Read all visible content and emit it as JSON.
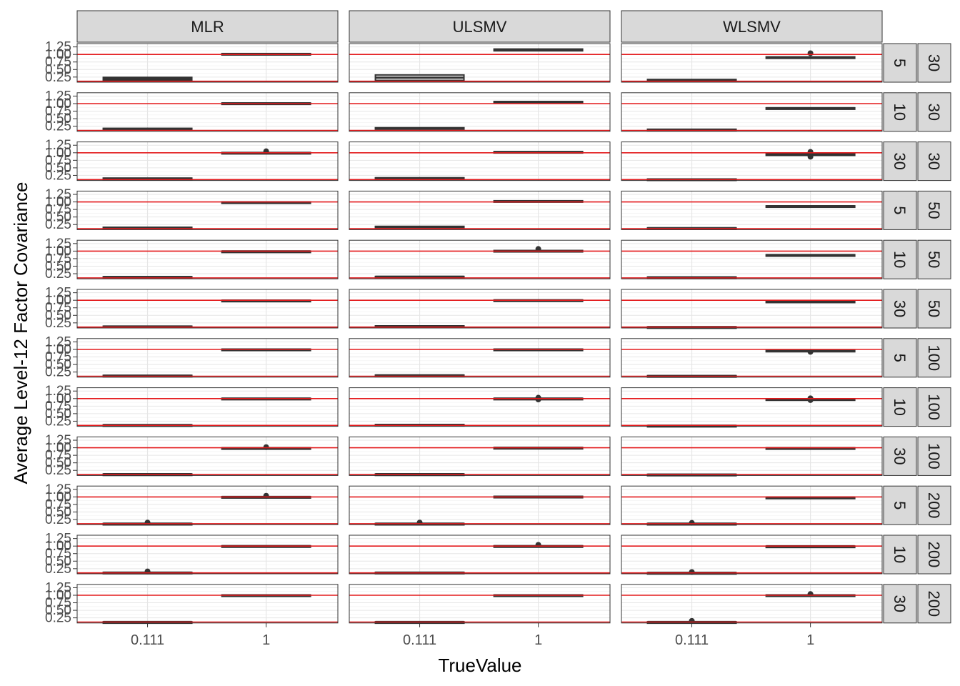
{
  "chart_data": {
    "type": "box",
    "xlabel": "TrueValue",
    "ylabel": "Average Level-12 Factor Covariance",
    "columns": [
      "MLR",
      "ULSMV",
      "WLSMV"
    ],
    "rows": [
      {
        "r1": "5",
        "r2": "30"
      },
      {
        "r1": "10",
        "r2": "30"
      },
      {
        "r1": "30",
        "r2": "30"
      },
      {
        "r1": "5",
        "r2": "50"
      },
      {
        "r1": "10",
        "r2": "50"
      },
      {
        "r1": "30",
        "r2": "50"
      },
      {
        "r1": "5",
        "r2": "100"
      },
      {
        "r1": "10",
        "r2": "100"
      },
      {
        "r1": "30",
        "r2": "100"
      },
      {
        "r1": "5",
        "r2": "200"
      },
      {
        "r1": "10",
        "r2": "200"
      },
      {
        "r1": "30",
        "r2": "200"
      }
    ],
    "categories": [
      "0.111",
      "1"
    ],
    "y_ticks": [
      "0.25",
      "0.50",
      "0.75",
      "1.00",
      "1.25"
    ],
    "y_tick_values": [
      0.25,
      0.5,
      0.75,
      1.0,
      1.25
    ],
    "ylim": [
      0.08,
      1.36
    ],
    "ref_lines": [
      0.111,
      1
    ],
    "ref_line_color": "#e31a1c",
    "box_color": "#333333",
    "strip_fill": "#d9d9d9",
    "panels": [
      [
        {
          "boxes": [
            {
              "q1": 0.14,
              "q3": 0.24,
              "lo": 0.13,
              "hi": 0.26,
              "out": []
            },
            {
              "q1": 1.0,
              "q3": 1.03,
              "lo": 0.99,
              "hi": 1.05,
              "out": []
            }
          ]
        },
        {
          "boxes": [
            {
              "q1": 0.14,
              "q3": 0.32,
              "lo": 0.12,
              "hi": 0.34,
              "out": []
            },
            {
              "q1": 1.12,
              "q3": 1.18,
              "lo": 1.1,
              "hi": 1.2,
              "out": []
            }
          ]
        },
        {
          "boxes": [
            {
              "q1": 0.13,
              "q3": 0.17,
              "lo": 0.12,
              "hi": 0.18,
              "out": []
            },
            {
              "q1": 0.87,
              "q3": 0.92,
              "lo": 0.86,
              "hi": 0.93,
              "out": [
                1.04
              ]
            }
          ]
        }
      ],
      [
        {
          "boxes": [
            {
              "q1": 0.14,
              "q3": 0.18,
              "lo": 0.13,
              "hi": 0.2,
              "out": []
            },
            {
              "q1": 1.0,
              "q3": 1.02,
              "lo": 0.99,
              "hi": 1.03,
              "out": []
            }
          ]
        },
        {
          "boxes": [
            {
              "q1": 0.15,
              "q3": 0.2,
              "lo": 0.13,
              "hi": 0.22,
              "out": []
            },
            {
              "q1": 1.04,
              "q3": 1.07,
              "lo": 1.03,
              "hi": 1.08,
              "out": []
            }
          ]
        },
        {
          "boxes": [
            {
              "q1": 0.12,
              "q3": 0.15,
              "lo": 0.11,
              "hi": 0.16,
              "out": []
            },
            {
              "q1": 0.84,
              "q3": 0.86,
              "lo": 0.83,
              "hi": 0.87,
              "out": []
            }
          ]
        }
      ],
      [
        {
          "boxes": [
            {
              "q1": 0.13,
              "q3": 0.16,
              "lo": 0.12,
              "hi": 0.17,
              "out": []
            },
            {
              "q1": 0.98,
              "q3": 1.01,
              "lo": 0.97,
              "hi": 1.02,
              "out": [
                1.05
              ]
            }
          ]
        },
        {
          "boxes": [
            {
              "q1": 0.14,
              "q3": 0.17,
              "lo": 0.13,
              "hi": 0.18,
              "out": []
            },
            {
              "q1": 1.0,
              "q3": 1.04,
              "lo": 0.99,
              "hi": 1.06,
              "out": []
            }
          ]
        },
        {
          "boxes": [
            {
              "q1": 0.1,
              "q3": 0.13,
              "lo": 0.09,
              "hi": 0.14,
              "out": []
            },
            {
              "q1": 0.92,
              "q3": 0.96,
              "lo": 0.9,
              "hi": 0.97,
              "out": [
                0.87,
                1.03
              ]
            }
          ]
        }
      ],
      [
        {
          "boxes": [
            {
              "q1": 0.13,
              "q3": 0.16,
              "lo": 0.12,
              "hi": 0.17,
              "out": []
            },
            {
              "q1": 0.98,
              "q3": 1.0,
              "lo": 0.97,
              "hi": 1.01,
              "out": []
            }
          ]
        },
        {
          "boxes": [
            {
              "q1": 0.14,
              "q3": 0.19,
              "lo": 0.13,
              "hi": 0.2,
              "out": []
            },
            {
              "q1": 1.01,
              "q3": 1.04,
              "lo": 1.0,
              "hi": 1.06,
              "out": []
            }
          ]
        },
        {
          "boxes": [
            {
              "q1": 0.12,
              "q3": 0.14,
              "lo": 0.11,
              "hi": 0.15,
              "out": []
            },
            {
              "q1": 0.85,
              "q3": 0.87,
              "lo": 0.84,
              "hi": 0.88,
              "out": []
            }
          ]
        }
      ],
      [
        {
          "boxes": [
            {
              "q1": 0.13,
              "q3": 0.15,
              "lo": 0.12,
              "hi": 0.16,
              "out": []
            },
            {
              "q1": 0.98,
              "q3": 1.0,
              "lo": 0.97,
              "hi": 1.01,
              "out": []
            }
          ]
        },
        {
          "boxes": [
            {
              "q1": 0.14,
              "q3": 0.16,
              "lo": 0.13,
              "hi": 0.17,
              "out": []
            },
            {
              "q1": 0.99,
              "q3": 1.02,
              "lo": 0.98,
              "hi": 1.03,
              "out": [
                1.07
              ]
            }
          ]
        },
        {
          "boxes": [
            {
              "q1": 0.12,
              "q3": 0.14,
              "lo": 0.11,
              "hi": 0.15,
              "out": []
            },
            {
              "q1": 0.86,
              "q3": 0.88,
              "lo": 0.85,
              "hi": 0.89,
              "out": []
            }
          ]
        }
      ],
      [
        {
          "boxes": [
            {
              "q1": 0.12,
              "q3": 0.14,
              "lo": 0.11,
              "hi": 0.15,
              "out": []
            },
            {
              "q1": 0.98,
              "q3": 1.0,
              "lo": 0.97,
              "hi": 1.01,
              "out": []
            }
          ]
        },
        {
          "boxes": [
            {
              "q1": 0.13,
              "q3": 0.15,
              "lo": 0.12,
              "hi": 0.16,
              "out": []
            },
            {
              "q1": 0.99,
              "q3": 1.01,
              "lo": 0.98,
              "hi": 1.02,
              "out": []
            }
          ]
        },
        {
          "boxes": [
            {
              "q1": 0.1,
              "q3": 0.12,
              "lo": 0.09,
              "hi": 0.13,
              "out": []
            },
            {
              "q1": 0.94,
              "q3": 0.97,
              "lo": 0.93,
              "hi": 0.98,
              "out": []
            }
          ]
        }
      ],
      [
        {
          "boxes": [
            {
              "q1": 0.12,
              "q3": 0.14,
              "lo": 0.11,
              "hi": 0.15,
              "out": []
            },
            {
              "q1": 0.99,
              "q3": 1.01,
              "lo": 0.98,
              "hi": 1.02,
              "out": []
            }
          ]
        },
        {
          "boxes": [
            {
              "q1": 0.13,
              "q3": 0.15,
              "lo": 0.12,
              "hi": 0.16,
              "out": []
            },
            {
              "q1": 0.99,
              "q3": 1.01,
              "lo": 0.98,
              "hi": 1.02,
              "out": []
            }
          ]
        },
        {
          "boxes": [
            {
              "q1": 0.11,
              "q3": 0.13,
              "lo": 0.1,
              "hi": 0.14,
              "out": []
            },
            {
              "q1": 0.94,
              "q3": 0.97,
              "lo": 0.93,
              "hi": 0.98,
              "out": [
                0.92
              ]
            }
          ]
        }
      ],
      [
        {
          "boxes": [
            {
              "q1": 0.12,
              "q3": 0.13,
              "lo": 0.11,
              "hi": 0.14,
              "out": []
            },
            {
              "q1": 0.99,
              "q3": 1.01,
              "lo": 0.98,
              "hi": 1.02,
              "out": []
            }
          ]
        },
        {
          "boxes": [
            {
              "q1": 0.12,
              "q3": 0.14,
              "lo": 0.11,
              "hi": 0.15,
              "out": []
            },
            {
              "q1": 0.99,
              "q3": 1.01,
              "lo": 0.98,
              "hi": 1.02,
              "out": [
                0.97,
                1.03
              ]
            }
          ]
        },
        {
          "boxes": [
            {
              "q1": 0.09,
              "q3": 0.11,
              "lo": 0.08,
              "hi": 0.12,
              "out": []
            },
            {
              "q1": 0.97,
              "q3": 0.99,
              "lo": 0.96,
              "hi": 1.0,
              "out": [
                0.95,
                1.01
              ]
            }
          ]
        }
      ],
      [
        {
          "boxes": [
            {
              "q1": 0.12,
              "q3": 0.13,
              "lo": 0.11,
              "hi": 0.14,
              "out": []
            },
            {
              "q1": 0.98,
              "q3": 1.0,
              "lo": 0.97,
              "hi": 1.01,
              "out": [
                1.02
              ]
            }
          ]
        },
        {
          "boxes": [
            {
              "q1": 0.12,
              "q3": 0.13,
              "lo": 0.11,
              "hi": 0.14,
              "out": []
            },
            {
              "q1": 0.99,
              "q3": 1.01,
              "lo": 0.98,
              "hi": 1.02,
              "out": []
            }
          ]
        },
        {
          "boxes": [
            {
              "q1": 0.1,
              "q3": 0.12,
              "lo": 0.09,
              "hi": 0.13,
              "out": []
            },
            {
              "q1": 0.98,
              "q3": 1.0,
              "lo": 0.97,
              "hi": 1.01,
              "out": []
            }
          ]
        }
      ],
      [
        {
          "boxes": [
            {
              "q1": 0.11,
              "q3": 0.12,
              "lo": 0.1,
              "hi": 0.13,
              "out": [
                0.15
              ]
            },
            {
              "q1": 0.99,
              "q3": 1.01,
              "lo": 0.98,
              "hi": 1.02,
              "out": [
                1.04
              ]
            }
          ]
        },
        {
          "boxes": [
            {
              "q1": 0.11,
              "q3": 0.12,
              "lo": 0.1,
              "hi": 0.13,
              "out": [
                0.15
              ]
            },
            {
              "q1": 1.0,
              "q3": 1.02,
              "lo": 0.99,
              "hi": 1.03,
              "out": []
            }
          ]
        },
        {
          "boxes": [
            {
              "q1": 0.11,
              "q3": 0.12,
              "lo": 0.1,
              "hi": 0.13,
              "out": [
                0.14
              ]
            },
            {
              "q1": 0.98,
              "q3": 0.99,
              "lo": 0.97,
              "hi": 1.0,
              "out": []
            }
          ]
        }
      ],
      [
        {
          "boxes": [
            {
              "q1": 0.11,
              "q3": 0.13,
              "lo": 0.1,
              "hi": 0.14,
              "out": [
                0.16
              ]
            },
            {
              "q1": 0.99,
              "q3": 1.01,
              "lo": 0.98,
              "hi": 1.02,
              "out": []
            }
          ]
        },
        {
          "boxes": [
            {
              "q1": 0.11,
              "q3": 0.13,
              "lo": 0.1,
              "hi": 0.14,
              "out": []
            },
            {
              "q1": 0.99,
              "q3": 1.01,
              "lo": 0.98,
              "hi": 1.02,
              "out": [
                1.04
              ]
            }
          ]
        },
        {
          "boxes": [
            {
              "q1": 0.11,
              "q3": 0.12,
              "lo": 0.1,
              "hi": 0.13,
              "out": [
                0.14
              ]
            },
            {
              "q1": 0.99,
              "q3": 1.0,
              "lo": 0.98,
              "hi": 1.01,
              "out": []
            }
          ]
        }
      ],
      [
        {
          "boxes": [
            {
              "q1": 0.11,
              "q3": 0.12,
              "lo": 0.1,
              "hi": 0.13,
              "out": []
            },
            {
              "q1": 0.99,
              "q3": 1.01,
              "lo": 0.98,
              "hi": 1.02,
              "out": []
            }
          ]
        },
        {
          "boxes": [
            {
              "q1": 0.11,
              "q3": 0.12,
              "lo": 0.1,
              "hi": 0.13,
              "out": []
            },
            {
              "q1": 0.99,
              "q3": 1.01,
              "lo": 0.98,
              "hi": 1.02,
              "out": []
            }
          ]
        },
        {
          "boxes": [
            {
              "q1": 0.11,
              "q3": 0.12,
              "lo": 0.1,
              "hi": 0.13,
              "out": [
                0.15
              ]
            },
            {
              "q1": 0.99,
              "q3": 1.01,
              "lo": 0.98,
              "hi": 1.02,
              "out": [
                1.04
              ]
            }
          ]
        }
      ]
    ]
  }
}
